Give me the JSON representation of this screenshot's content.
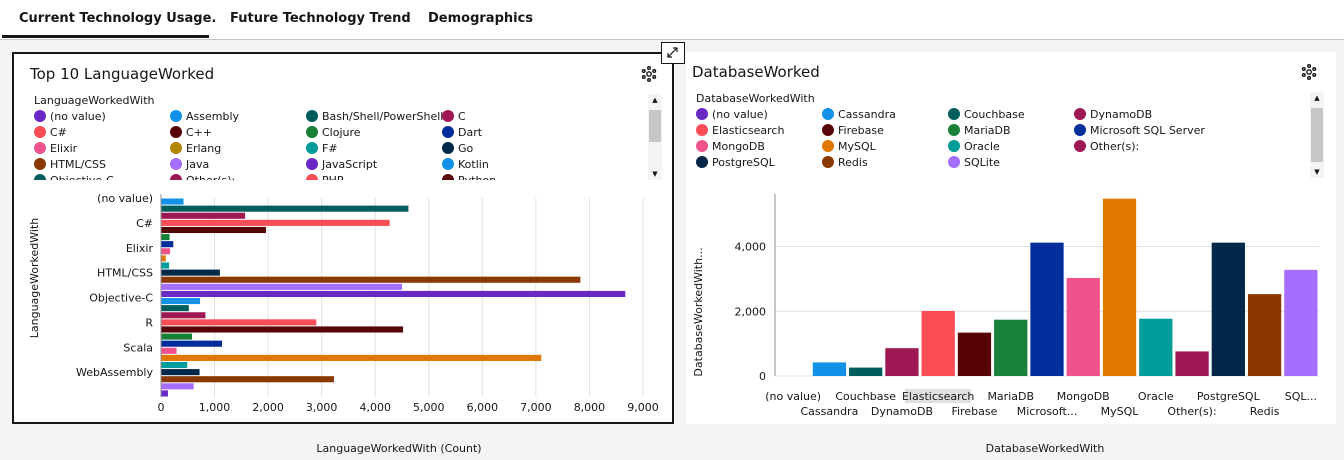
{
  "tabs": [
    {
      "label": "Current Technology Usage.",
      "active": true
    },
    {
      "label": "Future Technology Trend",
      "active": false
    },
    {
      "label": "Demographics",
      "active": false
    }
  ],
  "left_panel": {
    "title": "Top 10 LanguageWorked",
    "legend_title": "LanguageWorkedWith",
    "legend": [
      {
        "label": "(no value)",
        "color": "#6929c4"
      },
      {
        "label": "Assembly",
        "color": "#1192e8"
      },
      {
        "label": "Bash/Shell/PowerShell",
        "color": "#005d5d"
      },
      {
        "label": "C",
        "color": "#9f1853"
      },
      {
        "label": "C#",
        "color": "#fa4d56"
      },
      {
        "label": "C++",
        "color": "#570408"
      },
      {
        "label": "Clojure",
        "color": "#198038"
      },
      {
        "label": "Dart",
        "color": "#002d9c"
      },
      {
        "label": "Elixir",
        "color": "#ee538b"
      },
      {
        "label": "Erlang",
        "color": "#b28600"
      },
      {
        "label": "F#",
        "color": "#009d9a"
      },
      {
        "label": "Go",
        "color": "#012749"
      },
      {
        "label": "HTML/CSS",
        "color": "#8a3800"
      },
      {
        "label": "Java",
        "color": "#a56eff"
      },
      {
        "label": "JavaScript",
        "color": "#6929c4"
      },
      {
        "label": "Kotlin",
        "color": "#1192e8"
      },
      {
        "label": "Objective-C",
        "color": "#005d5d"
      },
      {
        "label": "Other(s):",
        "color": "#9f1853"
      },
      {
        "label": "PHP",
        "color": "#fa4d56"
      },
      {
        "label": "Python",
        "color": "#570408"
      }
    ]
  },
  "right_panel": {
    "title": "DatabaseWorked",
    "legend_title": "DatabaseWorkedWith",
    "legend": [
      {
        "label": "(no value)",
        "color": "#6929c4"
      },
      {
        "label": "Cassandra",
        "color": "#1192e8"
      },
      {
        "label": "Couchbase",
        "color": "#005d5d"
      },
      {
        "label": "DynamoDB",
        "color": "#9f1853"
      },
      {
        "label": "Elasticsearch",
        "color": "#fa4d56"
      },
      {
        "label": "Firebase",
        "color": "#570408"
      },
      {
        "label": "MariaDB",
        "color": "#198038"
      },
      {
        "label": "Microsoft SQL Server",
        "color": "#002d9c"
      },
      {
        "label": "MongoDB",
        "color": "#ee538b"
      },
      {
        "label": "MySQL",
        "color": "#e07800"
      },
      {
        "label": "Oracle",
        "color": "#009d9a"
      },
      {
        "label": "Other(s):",
        "color": "#9f1853"
      },
      {
        "label": "PostgreSQL",
        "color": "#012749"
      },
      {
        "label": "Redis",
        "color": "#8a3800"
      },
      {
        "label": "SQLite",
        "color": "#a56eff"
      }
    ]
  },
  "chart_data": [
    {
      "type": "bar",
      "orientation": "horizontal",
      "xlabel": "LanguageWorkedWith (Count)",
      "ylabel": "LanguageWorkedWith",
      "xlim": [
        0,
        9000
      ],
      "xticks": [
        "0",
        "1,000",
        "2,000",
        "3,000",
        "4,000",
        "5,000",
        "6,000",
        "7,000",
        "8,000",
        "9,000"
      ],
      "categories": [
        "(no value)",
        "C#",
        "Elixir",
        "HTML/CSS",
        "Objective-C",
        "R",
        "Scala",
        "WebAssembly"
      ],
      "bars": [
        {
          "value": 420,
          "color": "#1192e8"
        },
        {
          "value": 4620,
          "color": "#005d5d"
        },
        {
          "value": 1570,
          "color": "#9f1853"
        },
        {
          "value": 4270,
          "color": "#fa4d56"
        },
        {
          "value": 1960,
          "color": "#570408"
        },
        {
          "value": 160,
          "color": "#198038"
        },
        {
          "value": 230,
          "color": "#002d9c"
        },
        {
          "value": 170,
          "color": "#ee538b"
        },
        {
          "value": 90,
          "color": "#e07800"
        },
        {
          "value": 150,
          "color": "#009d9a"
        },
        {
          "value": 1100,
          "color": "#012749"
        },
        {
          "value": 7830,
          "color": "#8a3800"
        },
        {
          "value": 4500,
          "color": "#a56eff"
        },
        {
          "value": 8670,
          "color": "#6929c4"
        },
        {
          "value": 730,
          "color": "#1192e8"
        },
        {
          "value": 520,
          "color": "#005d5d"
        },
        {
          "value": 830,
          "color": "#9f1853"
        },
        {
          "value": 2900,
          "color": "#fa4d56"
        },
        {
          "value": 4520,
          "color": "#570408"
        },
        {
          "value": 580,
          "color": "#198038"
        },
        {
          "value": 1140,
          "color": "#002d9c"
        },
        {
          "value": 290,
          "color": "#ee538b"
        },
        {
          "value": 7100,
          "color": "#e07800"
        },
        {
          "value": 490,
          "color": "#009d9a"
        },
        {
          "value": 720,
          "color": "#012749"
        },
        {
          "value": 3230,
          "color": "#8a3800"
        },
        {
          "value": 610,
          "color": "#a56eff"
        },
        {
          "value": 130,
          "color": "#6929c4"
        }
      ]
    },
    {
      "type": "bar",
      "orientation": "vertical",
      "xlabel": "DatabaseWorkedWith",
      "ylabel": "DatabaseWorkedWith...",
      "ylim": [
        0,
        5500
      ],
      "yticks": [
        {
          "value": 0,
          "label": "0"
        },
        {
          "value": 2000,
          "label": "2,000"
        },
        {
          "value": 4000,
          "label": "4,000"
        }
      ],
      "categories": [
        "(no value)",
        "Cassandra",
        "Couchbase",
        "DynamoDB",
        "Elasticsearch",
        "Firebase",
        "MariaDB",
        "Microsoft...",
        "MongoDB",
        "MySQL",
        "Oracle",
        "Other(s):",
        "PostgreSQL",
        "Redis",
        "SQL..."
      ],
      "values": [
        0,
        420,
        260,
        860,
        2010,
        1340,
        1740,
        4120,
        3030,
        5480,
        1770,
        760,
        4120,
        2530,
        3280
      ],
      "colors": [
        "#6929c4",
        "#1192e8",
        "#005d5d",
        "#9f1853",
        "#fa4d56",
        "#570408",
        "#198038",
        "#002d9c",
        "#ee538b",
        "#e07800",
        "#009d9a",
        "#9f1853",
        "#012749",
        "#8a3800",
        "#a56eff"
      ],
      "highlighted": "Elasticsearch"
    }
  ]
}
